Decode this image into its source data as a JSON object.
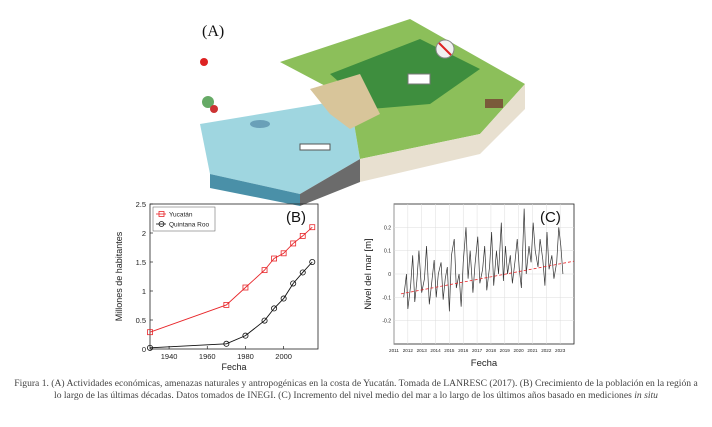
{
  "panel_a": {
    "label": "(A)"
  },
  "chart_data": [
    {
      "type": "line",
      "panel_label": "(B)",
      "xlabel": "Fecha",
      "ylabel": "Millones de habitantes",
      "xlim": [
        1930,
        2018
      ],
      "ylim": [
        0,
        2.5
      ],
      "xticks": [
        1940,
        1960,
        1980,
        2000
      ],
      "yticks": [
        0,
        0.5,
        1,
        1.5,
        2,
        2.5
      ],
      "ytick_labels": [
        "0",
        "0.5",
        "1",
        "1.5",
        "2",
        "2.5"
      ],
      "legend_position": "top-left",
      "series": [
        {
          "name": "Yucatán",
          "color": "#e8262a",
          "marker": "square",
          "x": [
            1930,
            1970,
            1980,
            1990,
            1995,
            2000,
            2005,
            2010,
            2015
          ],
          "y": [
            0.29,
            0.76,
            1.06,
            1.36,
            1.56,
            1.65,
            1.82,
            1.95,
            2.1
          ]
        },
        {
          "name": "Quintana Roo",
          "color": "#111111",
          "marker": "circle",
          "x": [
            1930,
            1970,
            1980,
            1990,
            1995,
            2000,
            2005,
            2010,
            2015
          ],
          "y": [
            0.02,
            0.09,
            0.23,
            0.49,
            0.7,
            0.87,
            1.13,
            1.32,
            1.5
          ]
        }
      ]
    },
    {
      "type": "line",
      "panel_label": "(C)",
      "xlabel": "Fecha",
      "ylabel": "Nivel del mar [m]",
      "xlim": [
        2011,
        2024
      ],
      "ylim": [
        -0.3,
        0.3
      ],
      "xticks": [
        "2011",
        "2012",
        "2013",
        "2014",
        "2015",
        "2016",
        "2017",
        "2018",
        "2019",
        "2020",
        "2021",
        "2022",
        "2023"
      ],
      "yticks": [
        -0.2,
        -0.1,
        0,
        0.1,
        0.2
      ],
      "ytick_labels": [
        "-0.2",
        "-0.1",
        "0",
        "0.1",
        "0.2"
      ],
      "grid": true,
      "series": [
        {
          "name": "",
          "color": "#333333",
          "x": [
            2011.7,
            2011.9,
            2012.0,
            2012.2,
            2012.35,
            2012.5,
            2012.65,
            2012.8,
            2013.0,
            2013.2,
            2013.35,
            2013.55,
            2013.7,
            2013.9,
            2014.05,
            2014.2,
            2014.4,
            2014.55,
            2014.7,
            2014.85,
            2015.0,
            2015.15,
            2015.35,
            2015.5,
            2015.7,
            2015.85,
            2016.0,
            2016.2,
            2016.35,
            2016.5,
            2016.7,
            2016.85,
            2017.05,
            2017.2,
            2017.4,
            2017.55,
            2017.7,
            2017.9,
            2018.05,
            2018.2,
            2018.4,
            2018.55,
            2018.75,
            2018.9,
            2019.05,
            2019.2,
            2019.4,
            2019.55,
            2019.75,
            2019.9,
            2020.05,
            2020.2,
            2020.4,
            2020.55,
            2020.75,
            2020.9,
            2021.05,
            2021.2,
            2021.4,
            2021.55,
            2021.75,
            2021.9,
            2022.05,
            2022.2,
            2022.4,
            2022.55,
            2022.75,
            2022.9,
            2023.05,
            2023.2
          ],
          "y": [
            -0.1,
            0.0,
            -0.15,
            -0.05,
            0.08,
            -0.12,
            -0.03,
            0.1,
            -0.08,
            -0.02,
            0.12,
            -0.13,
            -0.05,
            0.06,
            -0.1,
            0.0,
            0.05,
            -0.11,
            -0.02,
            0.03,
            -0.16,
            0.08,
            0.15,
            -0.06,
            0.0,
            -0.14,
            0.05,
            0.2,
            -0.02,
            0.1,
            -0.08,
            0.04,
            0.16,
            -0.04,
            0.02,
            0.12,
            -0.07,
            0.03,
            0.18,
            -0.05,
            0.1,
            0.0,
            0.22,
            -0.03,
            0.12,
            0.0,
            0.08,
            -0.04,
            0.06,
            0.15,
            0.02,
            -0.06,
            0.28,
            0.0,
            0.12,
            0.05,
            0.22,
            0.1,
            0.03,
            0.15,
            0.06,
            -0.05,
            0.18,
            0.02,
            0.08,
            -0.02,
            0.05,
            0.2,
            0.12,
            0.0
          ]
        },
        {
          "name": "",
          "color": "#e8262a",
          "dashed": true,
          "x": [
            2011.5,
            2024
          ],
          "y": [
            -0.085,
            0.055
          ]
        }
      ]
    }
  ],
  "caption": {
    "text": "Figura 1. (A) Actividades económicas, amenazas naturales y antropogénicas en la costa de Yucatán. Tomada de LANRESC (2017). (B) Crecimiento de la población en la región a lo largo de las últimas décadas. Datos tomados de INEGI. (C) Incremento del nivel medio del mar a lo largo de los últimos años basado en mediciones",
    "italic": "in situ"
  }
}
